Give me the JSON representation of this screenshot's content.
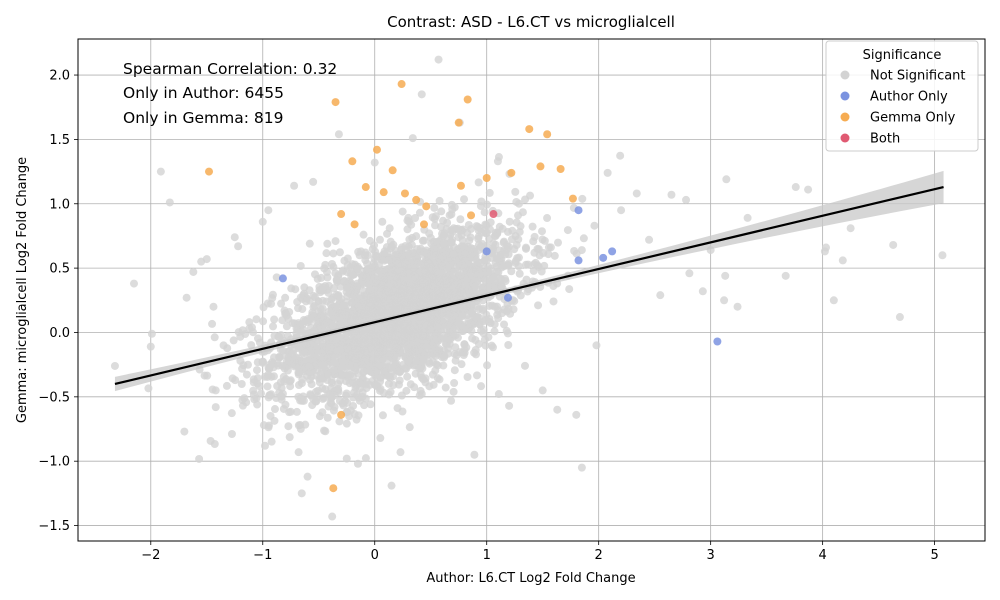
{
  "chart_data": {
    "type": "scatter",
    "title": "Contrast: ASD - L6.CT vs microglialcell",
    "xlabel": "Author: L6.CT Log2 Fold Change",
    "ylabel": "Gemma: microglialcell Log2 Fold Change",
    "xlim": [
      -2.65,
      5.45
    ],
    "ylim": [
      -1.62,
      2.28
    ],
    "xticks": [
      -2,
      -1,
      0,
      1,
      2,
      3,
      4,
      5
    ],
    "xtick_labels": [
      "−2",
      "−1",
      "0",
      "1",
      "2",
      "3",
      "4",
      "5"
    ],
    "yticks": [
      -1.5,
      -1.0,
      -0.5,
      0.0,
      0.5,
      1.0,
      1.5,
      2.0
    ],
    "ytick_labels": [
      "−1.5",
      "−1.0",
      "−0.5",
      "0.0",
      "0.5",
      "1.0",
      "1.5",
      "2.0"
    ],
    "grid": true,
    "legend": {
      "title": "Significance",
      "placement": "top-right",
      "entries": [
        {
          "label": "Not Significant",
          "color": "#d3d3d3"
        },
        {
          "label": "Author Only",
          "color": "#7b93e0"
        },
        {
          "label": "Gemma Only",
          "color": "#f6ac52"
        },
        {
          "label": "Both",
          "color": "#e05a72"
        }
      ]
    },
    "annotations": [
      "Spearman Correlation: 0.32",
      "Only in Author: 6455",
      "Only in Gemma: 819"
    ],
    "regression": {
      "x": [
        -2.32,
        5.08
      ],
      "y": [
        -0.4,
        1.13
      ],
      "color": "#000000",
      "band_color": "#c8c8c8"
    },
    "series": [
      {
        "name": "Not Significant",
        "color": "#d3d3d3",
        "points": [
          [
            -2.32,
            -0.26
          ],
          [
            -2.15,
            0.38
          ],
          [
            -2.0,
            -0.11
          ],
          [
            -1.99,
            -0.01
          ],
          [
            -1.91,
            1.25
          ],
          [
            -1.83,
            1.01
          ],
          [
            -1.7,
            -0.77
          ],
          [
            -1.68,
            0.27
          ],
          [
            -1.62,
            0.47
          ],
          [
            -1.55,
            0.55
          ],
          [
            -1.5,
            0.57
          ],
          [
            -1.44,
            0.2
          ],
          [
            -1.42,
            -0.45
          ],
          [
            -1.42,
            -0.58
          ],
          [
            -1.35,
            -0.1
          ],
          [
            -1.25,
            0.74
          ],
          [
            -1.22,
            0.67
          ],
          [
            -1.2,
            -0.22
          ],
          [
            -1.12,
            0.08
          ],
          [
            -1.05,
            -0.56
          ],
          [
            -1.0,
            0.86
          ],
          [
            -0.99,
            -0.72
          ],
          [
            -0.98,
            -0.88
          ],
          [
            -0.95,
            0.95
          ],
          [
            -0.9,
            -0.34
          ],
          [
            -0.72,
            1.14
          ],
          [
            -0.68,
            -0.93
          ],
          [
            -0.6,
            -1.12
          ],
          [
            -0.58,
            0.69
          ],
          [
            -0.55,
            1.17
          ],
          [
            -0.49,
            -0.65
          ],
          [
            -0.38,
            -1.43
          ],
          [
            -0.35,
            0.71
          ],
          [
            -0.32,
            1.54
          ],
          [
            -0.25,
            -0.98
          ],
          [
            -0.15,
            -1.02
          ],
          [
            -0.1,
            0.76
          ],
          [
            0.0,
            1.32
          ],
          [
            0.05,
            -0.82
          ],
          [
            0.15,
            -1.19
          ],
          [
            0.23,
            -0.93
          ],
          [
            0.3,
            0.89
          ],
          [
            0.34,
            1.51
          ],
          [
            0.42,
            1.85
          ],
          [
            0.57,
            2.12
          ],
          [
            0.76,
            1.63
          ],
          [
            0.89,
            -0.95
          ],
          [
            1.1,
            1.33
          ],
          [
            1.2,
            -0.57
          ],
          [
            1.5,
            -0.45
          ],
          [
            1.63,
            -0.6
          ],
          [
            1.8,
            -0.64
          ],
          [
            1.85,
            -1.05
          ],
          [
            1.98,
            -0.1
          ],
          [
            2.08,
            1.24
          ],
          [
            2.2,
            0.95
          ],
          [
            2.34,
            1.08
          ],
          [
            2.45,
            0.72
          ],
          [
            2.55,
            0.29
          ],
          [
            2.65,
            1.07
          ],
          [
            2.78,
            1.03
          ],
          [
            2.81,
            0.46
          ],
          [
            2.93,
            0.32
          ],
          [
            3.0,
            0.64
          ],
          [
            3.12,
            0.25
          ],
          [
            3.13,
            0.44
          ],
          [
            3.14,
            1.19
          ],
          [
            3.24,
            0.2
          ],
          [
            3.33,
            0.89
          ],
          [
            3.67,
            0.44
          ],
          [
            3.76,
            1.13
          ],
          [
            3.87,
            1.11
          ],
          [
            4.02,
            0.63
          ],
          [
            4.03,
            0.66
          ],
          [
            4.1,
            0.25
          ],
          [
            4.18,
            0.56
          ],
          [
            4.25,
            0.81
          ],
          [
            4.63,
            0.68
          ],
          [
            4.69,
            0.12
          ],
          [
            5.07,
            0.6
          ]
        ],
        "dense_cloud": {
          "center": [
            0.2,
            0.15
          ],
          "sd": [
            0.55,
            0.32
          ],
          "count": 3200
        }
      },
      {
        "name": "Author Only",
        "color": "#7b93e0",
        "points": [
          [
            -0.82,
            0.42
          ],
          [
            1.0,
            0.63
          ],
          [
            1.19,
            0.27
          ],
          [
            1.82,
            0.95
          ],
          [
            1.82,
            0.56
          ],
          [
            2.04,
            0.58
          ],
          [
            2.12,
            0.63
          ],
          [
            3.06,
            -0.07
          ]
        ]
      },
      {
        "name": "Gemma Only",
        "color": "#f6ac52",
        "points": [
          [
            -1.48,
            1.25
          ],
          [
            -0.35,
            1.79
          ],
          [
            -0.3,
            0.92
          ],
          [
            -0.3,
            -0.64
          ],
          [
            -0.2,
            1.33
          ],
          [
            -0.18,
            0.84
          ],
          [
            -0.08,
            1.13
          ],
          [
            0.02,
            1.42
          ],
          [
            0.08,
            1.09
          ],
          [
            0.16,
            1.26
          ],
          [
            0.24,
            1.93
          ],
          [
            0.27,
            1.08
          ],
          [
            0.37,
            1.03
          ],
          [
            0.44,
            0.84
          ],
          [
            0.46,
            0.98
          ],
          [
            0.75,
            1.63
          ],
          [
            0.77,
            1.14
          ],
          [
            0.83,
            1.81
          ],
          [
            0.86,
            0.91
          ],
          [
            1.0,
            1.2
          ],
          [
            1.22,
            1.24
          ],
          [
            1.38,
            1.58
          ],
          [
            1.48,
            1.29
          ],
          [
            1.54,
            1.54
          ],
          [
            1.66,
            1.27
          ],
          [
            1.77,
            1.04
          ],
          [
            -0.37,
            -1.21
          ]
        ]
      },
      {
        "name": "Both",
        "color": "#e05a72",
        "points": [
          [
            1.06,
            0.92
          ]
        ]
      }
    ]
  }
}
